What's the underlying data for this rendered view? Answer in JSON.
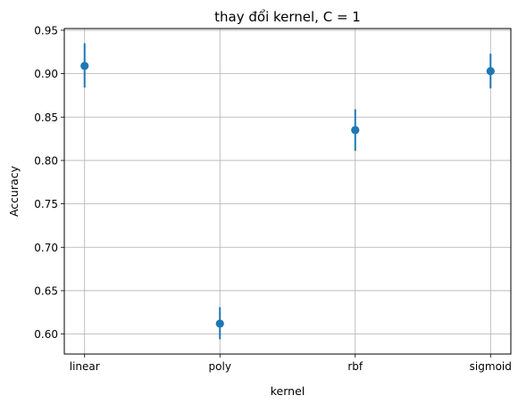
{
  "chart_data": {
    "type": "scatter",
    "title": "thay đổi kernel, C = 1",
    "xlabel": "kernel",
    "ylabel": "Accuracy",
    "categories": [
      "linear",
      "poly",
      "rbf",
      "sigmoid"
    ],
    "series": [
      {
        "values": [
          0.909,
          0.612,
          0.835,
          0.903
        ],
        "error_low": [
          0.884,
          0.594,
          0.811,
          0.883
        ],
        "error_high": [
          0.935,
          0.631,
          0.859,
          0.923
        ],
        "color": "#1f77b4"
      }
    ],
    "ylim": [
      0.577,
      0.952
    ],
    "yticks": [
      "0.60",
      "0.65",
      "0.70",
      "0.75",
      "0.80",
      "0.85",
      "0.90",
      "0.95"
    ],
    "grid": true
  }
}
